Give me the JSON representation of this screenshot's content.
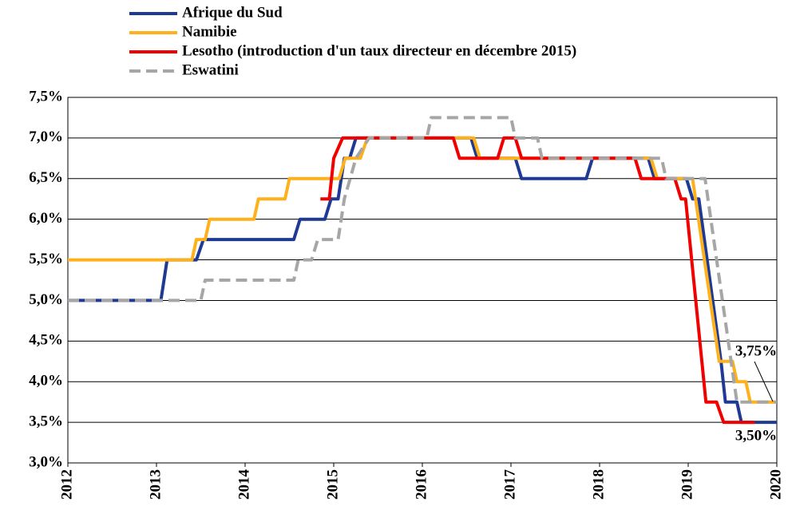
{
  "chart_data": {
    "type": "line",
    "series": [
      {
        "name": "Afrique du Sud",
        "color": "#1f3a93",
        "style": "solid",
        "x": [
          2012,
          2013.05,
          2013.12,
          2013.45,
          2013.53,
          2014.55,
          2014.62,
          2014.9,
          2014.97,
          2015.05,
          2015.12,
          2015.18,
          2015.25,
          2016.55,
          2016.62,
          2017.05,
          2017.12,
          2017.85,
          2017.92,
          2018.55,
          2018.62,
          2018.98,
          2019.05,
          2019.12,
          2019.37,
          2019.42,
          2019.55,
          2019.6,
          2020
        ],
        "values": [
          5.0,
          5.0,
          5.5,
          5.5,
          5.75,
          5.75,
          6.0,
          6.0,
          6.25,
          6.25,
          6.75,
          6.75,
          7.0,
          7.0,
          6.75,
          6.75,
          6.5,
          6.5,
          6.75,
          6.75,
          6.5,
          6.5,
          6.25,
          6.25,
          4.25,
          3.75,
          3.75,
          3.5,
          3.5
        ]
      },
      {
        "name": "Namibie",
        "color": "#ffb11b",
        "style": "solid",
        "x": [
          2012,
          2013.4,
          2013.45,
          2013.55,
          2013.6,
          2014.1,
          2014.15,
          2014.45,
          2014.5,
          2015.06,
          2015.13,
          2015.3,
          2015.38,
          2016.58,
          2016.65,
          2018.58,
          2018.65,
          2019.05,
          2019.35,
          2019.5,
          2019.55,
          2019.65,
          2019.7,
          2020
        ],
        "values": [
          5.5,
          5.5,
          5.75,
          5.75,
          6.0,
          6.0,
          6.25,
          6.25,
          6.5,
          6.5,
          6.75,
          6.75,
          7.0,
          7.0,
          6.75,
          6.75,
          6.5,
          6.5,
          4.25,
          4.25,
          4.0,
          4.0,
          3.75,
          3.75
        ]
      },
      {
        "name": "Lesotho (introduction d'un taux directeur en décembre 2015)",
        "color": "#f00000",
        "style": "solid",
        "x": [
          2014.85,
          2014.95,
          2015.0,
          2015.1,
          2016.35,
          2016.42,
          2016.85,
          2016.92,
          2017.05,
          2017.12,
          2018.4,
          2018.47,
          2018.85,
          2018.92,
          2018.97,
          2019.2,
          2019.27,
          2019.32,
          2019.4,
          2019.75
        ],
        "values": [
          6.25,
          6.25,
          6.75,
          7.0,
          7.0,
          6.75,
          6.75,
          7.0,
          7.0,
          6.75,
          6.75,
          6.5,
          6.5,
          6.25,
          6.25,
          3.75,
          3.75,
          3.75,
          3.5,
          3.5
        ]
      },
      {
        "name": "Eswatini",
        "color": "#a6a6a6",
        "style": "dashed",
        "x": [
          2012,
          2013.5,
          2013.55,
          2014.55,
          2014.6,
          2014.75,
          2014.82,
          2015.05,
          2015.12,
          2015.25,
          2015.4,
          2016.05,
          2016.1,
          2017.0,
          2017.05,
          2017.3,
          2017.35,
          2018.7,
          2018.75,
          2019.19,
          2019.55,
          2020
        ],
        "values": [
          5.0,
          5.0,
          5.25,
          5.25,
          5.5,
          5.5,
          5.75,
          5.75,
          6.25,
          6.75,
          7.0,
          7.0,
          7.25,
          7.25,
          7.0,
          7.0,
          6.75,
          6.75,
          6.5,
          6.5,
          3.75,
          3.75
        ]
      }
    ],
    "xlim": [
      2012,
      2020
    ],
    "xticks": [
      2012,
      2013,
      2014,
      2015,
      2016,
      2017,
      2018,
      2019,
      2020
    ],
    "ylim": [
      3.0,
      7.5
    ],
    "yticks": [
      {
        "value": 3.0,
        "label": "3,0%"
      },
      {
        "value": 3.5,
        "label": "3,5%"
      },
      {
        "value": 4.0,
        "label": "4,0%"
      },
      {
        "value": 4.5,
        "label": "4,5%"
      },
      {
        "value": 5.0,
        "label": "5,0%"
      },
      {
        "value": 5.5,
        "label": "5,5%"
      },
      {
        "value": 6.0,
        "label": "6,0%"
      },
      {
        "value": 6.5,
        "label": "6,5%"
      },
      {
        "value": 7.0,
        "label": "7,0%"
      },
      {
        "value": 7.5,
        "label": "7,5%"
      }
    ],
    "grid": true,
    "annotations": [
      "3,75%",
      "3,50%"
    ]
  }
}
